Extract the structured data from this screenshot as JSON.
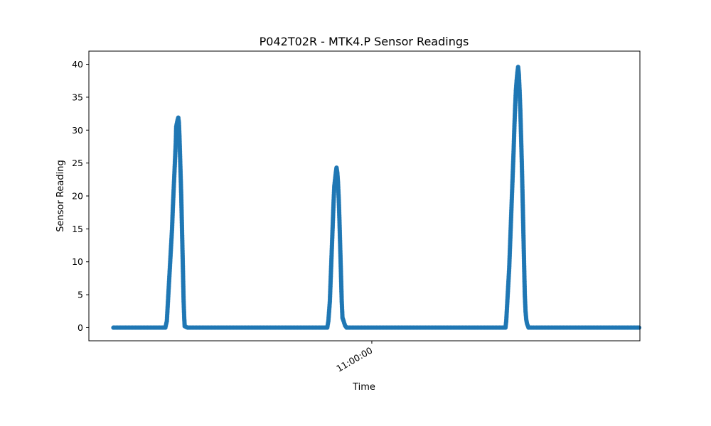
{
  "chart_data": {
    "type": "line",
    "title": "P042T02R - MTK4.P Sensor Readings",
    "xlabel": "Time",
    "ylabel": "Sensor Reading",
    "ylim": [
      -2,
      42
    ],
    "yticks": [
      0,
      5,
      10,
      15,
      20,
      25,
      30,
      35,
      40
    ],
    "x_tick_labels": [
      "11:00:00"
    ],
    "grid": false,
    "marker": "circle",
    "series": [
      {
        "color": "#1f77b4",
        "points": [
          [
            0,
            0
          ],
          [
            8,
            0
          ],
          [
            16,
            0
          ],
          [
            24,
            0
          ],
          [
            32,
            0
          ],
          [
            40,
            0
          ],
          [
            48,
            0
          ],
          [
            56,
            0
          ],
          [
            64,
            0
          ],
          [
            70,
            0
          ],
          [
            72,
            1
          ],
          [
            73,
            3
          ],
          [
            74,
            5
          ],
          [
            75,
            7
          ],
          [
            76,
            9
          ],
          [
            77,
            11
          ],
          [
            78,
            13
          ],
          [
            79,
            15
          ],
          [
            80,
            18
          ],
          [
            81,
            20.5
          ],
          [
            82,
            23
          ],
          [
            83,
            25.5
          ],
          [
            84,
            28
          ],
          [
            84.6,
            30.5
          ],
          [
            85.4,
            31
          ],
          [
            86.4,
            31.5
          ],
          [
            87.4,
            31.9
          ],
          [
            88.2,
            31.2
          ],
          [
            89,
            29
          ],
          [
            89.8,
            26
          ],
          [
            90.6,
            23
          ],
          [
            91.4,
            20
          ],
          [
            92.2,
            16
          ],
          [
            93,
            12
          ],
          [
            93.8,
            8
          ],
          [
            94.6,
            4
          ],
          [
            95.4,
            1.5
          ],
          [
            96,
            0.2
          ],
          [
            100,
            0
          ],
          [
            110,
            0
          ],
          [
            120,
            0
          ],
          [
            130,
            0
          ],
          [
            140,
            0
          ],
          [
            150,
            0
          ],
          [
            160,
            0
          ],
          [
            170,
            0
          ],
          [
            180,
            0
          ],
          [
            190,
            0
          ],
          [
            200,
            0
          ],
          [
            210,
            0
          ],
          [
            220,
            0
          ],
          [
            230,
            0
          ],
          [
            240,
            0
          ],
          [
            250,
            0
          ],
          [
            260,
            0
          ],
          [
            270,
            0
          ],
          [
            280,
            0
          ],
          [
            288,
            0
          ],
          [
            289.5,
            1
          ],
          [
            290.5,
            2.5
          ],
          [
            291.5,
            4
          ],
          [
            292.5,
            7
          ],
          [
            293.5,
            10
          ],
          [
            294.5,
            13
          ],
          [
            295.5,
            16
          ],
          [
            296.5,
            19
          ],
          [
            297.5,
            21.5
          ],
          [
            298.5,
            22.5
          ],
          [
            299.5,
            23.5
          ],
          [
            300.5,
            24.3
          ],
          [
            301.5,
            23.6
          ],
          [
            302.5,
            22
          ],
          [
            303.5,
            19.5
          ],
          [
            304.5,
            16
          ],
          [
            305.5,
            12
          ],
          [
            306.5,
            8
          ],
          [
            307.5,
            4
          ],
          [
            308.5,
            1.5
          ],
          [
            310,
            1
          ],
          [
            312,
            0.3
          ],
          [
            314,
            0
          ],
          [
            320,
            0
          ],
          [
            330,
            0
          ],
          [
            340,
            0
          ],
          [
            350,
            0
          ],
          [
            360,
            0
          ],
          [
            370,
            0
          ],
          [
            380,
            0
          ],
          [
            390,
            0
          ],
          [
            400,
            0
          ],
          [
            410,
            0
          ],
          [
            420,
            0
          ],
          [
            430,
            0
          ],
          [
            440,
            0
          ],
          [
            450,
            0
          ],
          [
            460,
            0
          ],
          [
            470,
            0
          ],
          [
            480,
            0
          ],
          [
            490,
            0
          ],
          [
            500,
            0
          ],
          [
            510,
            0
          ],
          [
            520,
            0
          ],
          [
            528,
            0
          ],
          [
            529,
            1
          ],
          [
            530,
            3
          ],
          [
            531,
            5
          ],
          [
            532,
            7
          ],
          [
            533,
            9
          ],
          [
            534,
            12
          ],
          [
            535,
            15
          ],
          [
            536,
            18
          ],
          [
            537,
            21
          ],
          [
            538,
            24
          ],
          [
            539,
            27
          ],
          [
            540,
            30.5
          ],
          [
            541,
            33.5
          ],
          [
            542,
            36
          ],
          [
            543,
            37.5
          ],
          [
            544,
            38.7
          ],
          [
            545,
            39.6
          ],
          [
            546,
            38.5
          ],
          [
            547,
            36
          ],
          [
            548,
            33
          ],
          [
            549,
            29
          ],
          [
            550,
            25
          ],
          [
            551,
            20
          ],
          [
            552,
            15
          ],
          [
            553,
            10
          ],
          [
            554,
            5
          ],
          [
            555,
            2.5
          ],
          [
            556,
            1.2
          ],
          [
            557,
            0.6
          ],
          [
            559,
            0
          ],
          [
            570,
            0
          ],
          [
            580,
            0
          ],
          [
            590,
            0
          ],
          [
            600,
            0
          ],
          [
            610,
            0
          ],
          [
            620,
            0
          ],
          [
            630,
            0
          ],
          [
            640,
            0
          ],
          [
            650,
            0
          ],
          [
            660,
            0
          ],
          [
            670,
            0
          ],
          [
            680,
            0
          ],
          [
            690,
            0
          ],
          [
            700,
            0
          ],
          [
            708,
            0
          ]
        ]
      }
    ],
    "x_tick_positions": [
      348
    ],
    "xlim": [
      -33,
      709
    ]
  }
}
